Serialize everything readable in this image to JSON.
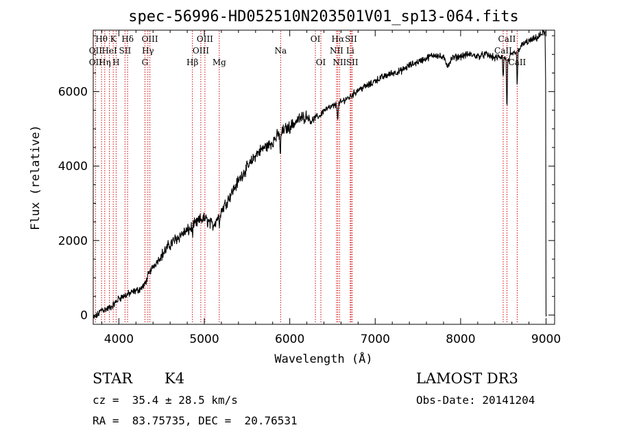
{
  "chart_data": {
    "type": "line",
    "title": "spec-56996-HD052510N203501V01_sp13-064.fits",
    "xlabel": "Wavelength (Å)",
    "ylabel": "Flux (relative)",
    "xlim": [
      3700,
      9100
    ],
    "ylim": [
      -250,
      7650
    ],
    "xticks": [
      4000,
      5000,
      6000,
      7000,
      8000,
      9000
    ],
    "yticks": [
      0,
      2000,
      4000,
      6000
    ],
    "series": [
      {
        "name": "spectrum",
        "x": [
          3700,
          3750,
          3800,
          3850,
          3900,
          3950,
          4000,
          4050,
          4100,
          4150,
          4200,
          4250,
          4300,
          4350,
          4400,
          4450,
          4500,
          4550,
          4600,
          4650,
          4700,
          4750,
          4800,
          4850,
          4900,
          4950,
          5000,
          5050,
          5100,
          5150,
          5200,
          5250,
          5300,
          5350,
          5400,
          5450,
          5500,
          5550,
          5600,
          5650,
          5700,
          5750,
          5800,
          5850,
          5900,
          5950,
          6000,
          6050,
          6100,
          6150,
          6200,
          6250,
          6300,
          6350,
          6400,
          6450,
          6500,
          6550,
          6600,
          6650,
          6700,
          6750,
          6800,
          6850,
          6900,
          6950,
          7000,
          7100,
          7200,
          7300,
          7400,
          7500,
          7600,
          7700,
          7800,
          7850,
          7900,
          8000,
          8100,
          8200,
          8300,
          8400,
          8500,
          8550,
          8600,
          8650,
          8700,
          8750,
          8800,
          8850,
          8900,
          8950,
          8990
        ],
        "y": [
          -100,
          0,
          150,
          150,
          200,
          300,
          450,
          500,
          550,
          600,
          650,
          700,
          800,
          1100,
          1300,
          1450,
          1600,
          1750,
          1900,
          2000,
          2100,
          2200,
          2250,
          2350,
          2450,
          2550,
          2600,
          2500,
          2400,
          2600,
          2800,
          3000,
          3200,
          3400,
          3600,
          3800,
          3950,
          4100,
          4300,
          4400,
          4500,
          4550,
          4650,
          4800,
          4900,
          5000,
          5050,
          5150,
          5250,
          5300,
          5350,
          5200,
          5300,
          5350,
          5500,
          5550,
          5600,
          5650,
          5700,
          5800,
          5850,
          5950,
          6050,
          6100,
          6150,
          6200,
          6300,
          6400,
          6500,
          6550,
          6700,
          6800,
          6900,
          7000,
          6900,
          6700,
          6900,
          6950,
          7000,
          6950,
          7000,
          6900,
          6950,
          6800,
          7000,
          7050,
          7200,
          7300,
          7350,
          7400,
          7450,
          7550,
          7600
        ]
      }
    ],
    "absorption_dips": [
      {
        "x": 5890,
        "depth": 700
      },
      {
        "x": 6563,
        "depth": 500
      },
      {
        "x": 8498,
        "depth": 700
      },
      {
        "x": 8542,
        "depth": 1500
      },
      {
        "x": 8662,
        "depth": 1100
      },
      {
        "x": 4861,
        "depth": 200
      },
      {
        "x": 5175,
        "depth": 300
      }
    ],
    "line_markers": [
      {
        "label": "Hθ",
        "x": 3797,
        "row": 1
      },
      {
        "label": "OII",
        "x": 3727,
        "row": 2
      },
      {
        "label": "OII",
        "x": 3727,
        "row": 3
      },
      {
        "label": "K",
        "x": 3934,
        "row": 1
      },
      {
        "label": "HeI",
        "x": 3889,
        "row": 2
      },
      {
        "label": "Hη",
        "x": 3835,
        "row": 3
      },
      {
        "label": "H",
        "x": 3968,
        "row": 3
      },
      {
        "label": "Hδ",
        "x": 4102,
        "row": 1
      },
      {
        "label": "SII",
        "x": 4072,
        "row": 2
      },
      {
        "label": "OIII",
        "x": 4363,
        "row": 1
      },
      {
        "label": "Hγ",
        "x": 4340,
        "row": 2
      },
      {
        "label": "G",
        "x": 4305,
        "row": 3
      },
      {
        "label": "OIII",
        "x": 5007,
        "row": 1
      },
      {
        "label": "OIII",
        "x": 4959,
        "row": 2
      },
      {
        "label": "Hβ",
        "x": 4861,
        "row": 3
      },
      {
        "label": "Mg",
        "x": 5175,
        "row": 3
      },
      {
        "label": "Na",
        "x": 5893,
        "row": 2
      },
      {
        "label": "OI",
        "x": 6300,
        "row": 1
      },
      {
        "label": "OI",
        "x": 6364,
        "row": 3
      },
      {
        "label": "Hα",
        "x": 6563,
        "row": 1
      },
      {
        "label": "SII",
        "x": 6717,
        "row": 1
      },
      {
        "label": "NII",
        "x": 6548,
        "row": 2
      },
      {
        "label": "Li",
        "x": 6708,
        "row": 2
      },
      {
        "label": "NII",
        "x": 6583,
        "row": 3
      },
      {
        "label": "SII",
        "x": 6731,
        "row": 3
      },
      {
        "label": "CaII",
        "x": 8542,
        "row": 1
      },
      {
        "label": "CaII",
        "x": 8498,
        "row": 2
      },
      {
        "label": "CaII",
        "x": 8662,
        "row": 3
      }
    ],
    "colors": {
      "spectrum": "#000000",
      "markers": "#cc0000"
    }
  },
  "info": {
    "object_class": "STAR",
    "subclass": "K4",
    "survey": "LAMOST DR3",
    "redshift": "cz =  35.4 ± 28.5 km/s",
    "obs_date": "Obs-Date: 20141204",
    "coords": "RA =  83.75735, DEC =  20.76531"
  }
}
